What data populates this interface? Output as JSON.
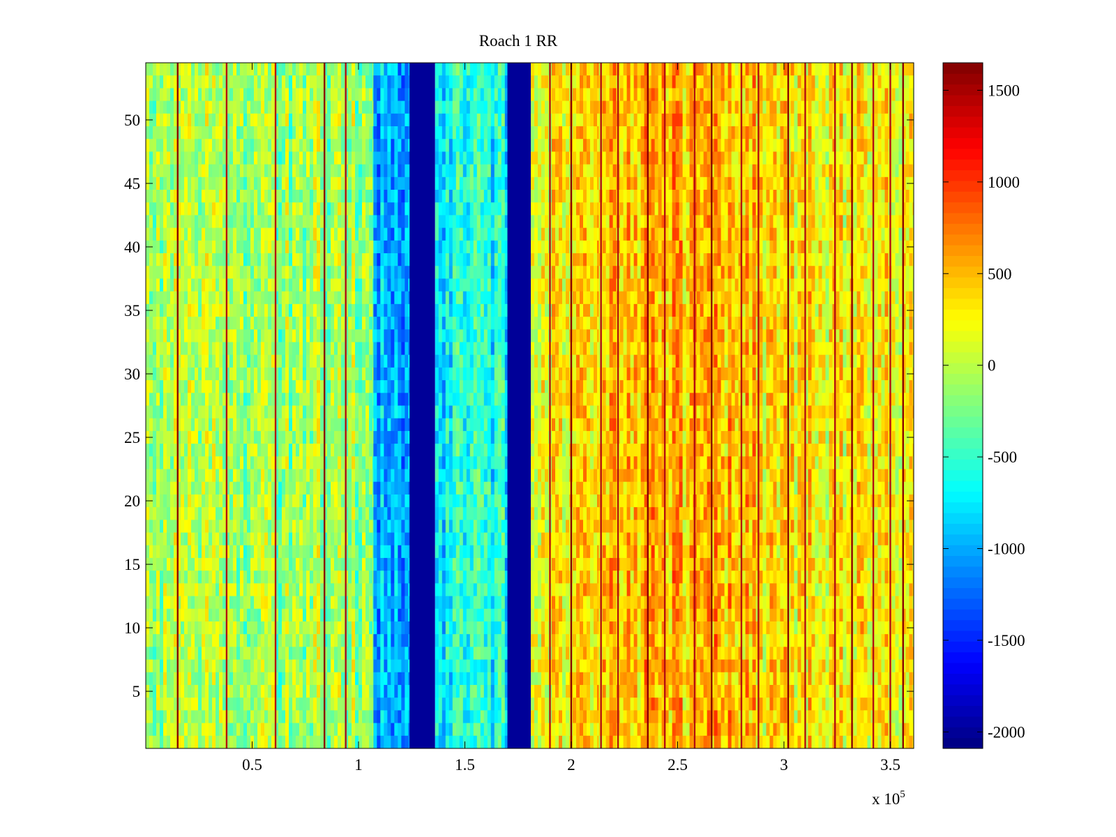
{
  "chart_data": {
    "type": "heatmap",
    "title": "Roach 1 RR",
    "xlabel": "",
    "ylabel": "",
    "x_multiplier": "x 10",
    "x_multiplier_exponent": "5",
    "xlim": [
      0,
      361000
    ],
    "ylim": [
      0.5,
      54.5
    ],
    "x_ticks": [
      50000,
      100000,
      150000,
      200000,
      250000,
      300000,
      350000
    ],
    "x_tick_labels": [
      "0.5",
      "1",
      "1.5",
      "2",
      "2.5",
      "3",
      "3.5"
    ],
    "y_ticks": [
      5,
      10,
      15,
      20,
      25,
      30,
      35,
      40,
      45,
      50
    ],
    "y_tick_labels": [
      "5",
      "10",
      "15",
      "20",
      "25",
      "30",
      "35",
      "40",
      "45",
      "50"
    ],
    "rows": 54,
    "colormap": "jet",
    "grid": false,
    "colorbar": {
      "clim": [
        -2090,
        1650
      ],
      "ticks": [
        -2000,
        -1500,
        -1000,
        -500,
        0,
        500,
        1000,
        1500
      ],
      "tick_labels": [
        "-2000",
        "-1500",
        "-1000",
        "-500",
        "0",
        "500",
        "1000",
        "1500"
      ]
    },
    "column_profile": [
      {
        "x_start": 0,
        "x_end": 107000,
        "approx_value": -100
      },
      {
        "x_start": 107000,
        "x_end": 124000,
        "approx_value": -1000
      },
      {
        "x_start": 124000,
        "x_end": 136000,
        "approx_value": -2000
      },
      {
        "x_start": 136000,
        "x_end": 170000,
        "approx_value": -650
      },
      {
        "x_start": 170000,
        "x_end": 181000,
        "approx_value": -2000
      },
      {
        "x_start": 181000,
        "x_end": 213000,
        "approx_value": 250
      },
      {
        "x_start": 213000,
        "x_end": 290000,
        "approx_value": 500
      },
      {
        "x_start": 290000,
        "x_end": 361000,
        "approx_value": 300
      }
    ],
    "high_value_stripes_x": [
      15000,
      38000,
      61000,
      84000,
      94000,
      190000,
      200000,
      214000,
      222000,
      236000,
      244000,
      258000,
      266000,
      280000,
      288000,
      302000,
      310000,
      324000,
      332000,
      342000,
      350000,
      356000
    ]
  }
}
